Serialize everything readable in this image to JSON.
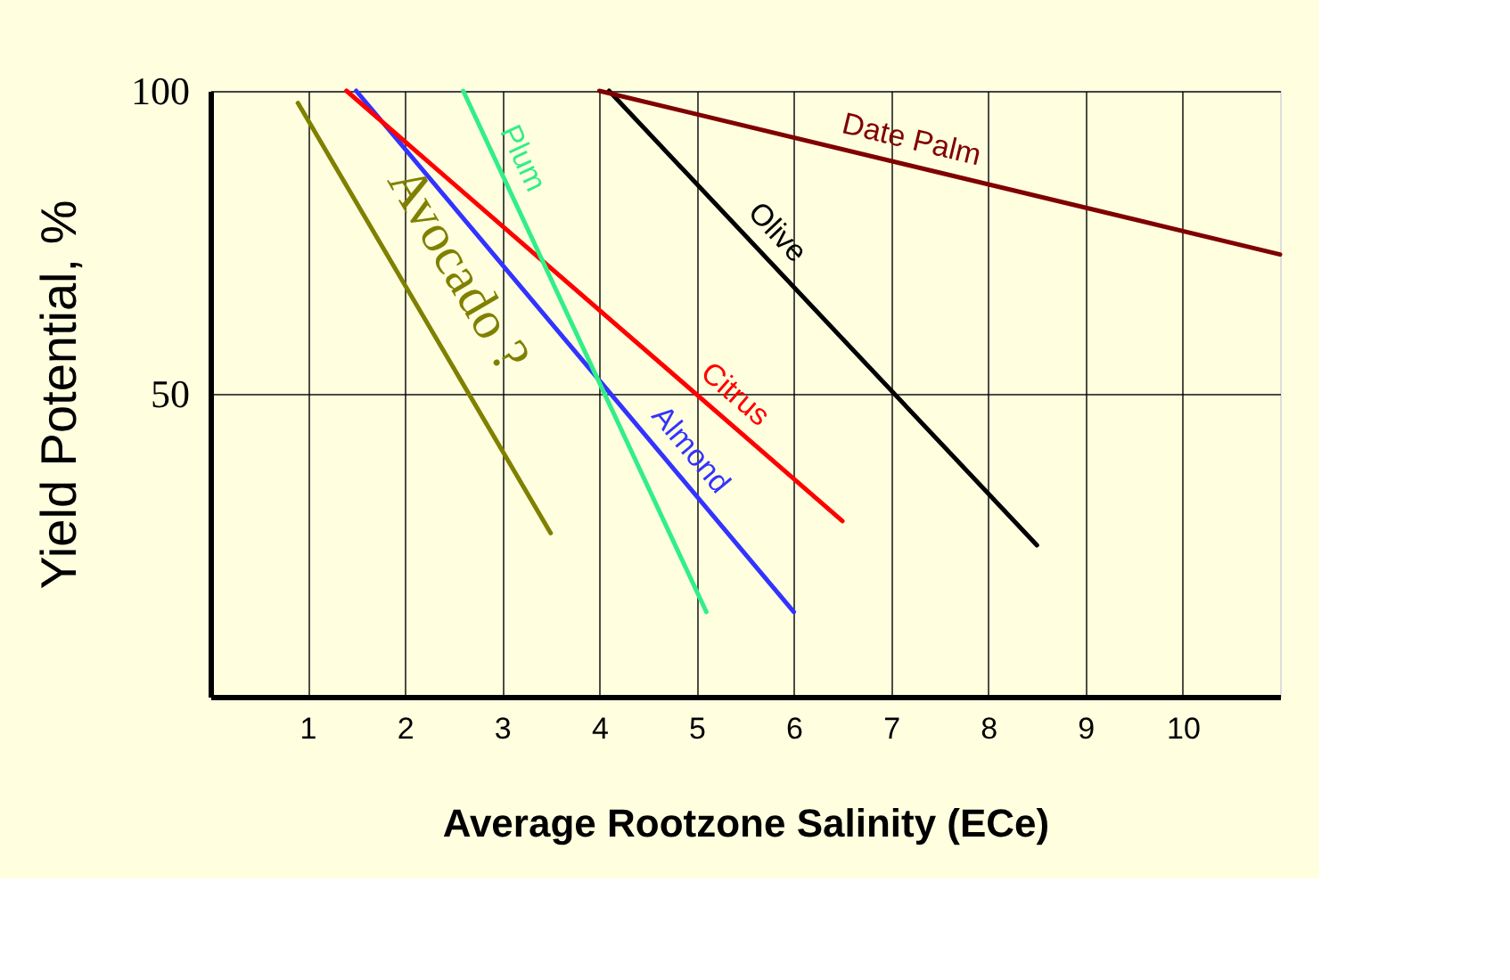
{
  "chart_data": {
    "type": "line",
    "xlabel": "Average Rootzone Salinity (ECe)",
    "ylabel": "Yield Potential, %",
    "xlim": [
      0,
      11
    ],
    "xticks": [
      1,
      2,
      3,
      4,
      5,
      6,
      7,
      8,
      9,
      10
    ],
    "ylim": [
      0,
      100
    ],
    "yticks": [
      50,
      100
    ],
    "grid": true,
    "legend": false,
    "marker": "none",
    "line_style": "solid",
    "series": [
      {
        "name": "Avocado ?",
        "color": "#808000",
        "x": [
          0.9,
          3.5
        ],
        "values": [
          98,
          27
        ]
      },
      {
        "name": "Almond",
        "color": "#3333ff",
        "x": [
          1.5,
          6
        ],
        "values": [
          100,
          14
        ]
      },
      {
        "name": "Citrus",
        "color": "#ff0000",
        "x": [
          1.4,
          6.5
        ],
        "values": [
          100,
          29
        ]
      },
      {
        "name": "Plum",
        "color": "#33ee88",
        "x": [
          2.6,
          5.1
        ],
        "values": [
          100,
          14
        ]
      },
      {
        "name": "Olive",
        "color": "#000000",
        "x": [
          4.1,
          8.5
        ],
        "values": [
          100,
          25
        ]
      },
      {
        "name": "Date Palm",
        "color": "#800000",
        "x": [
          4,
          11
        ],
        "values": [
          100,
          73
        ]
      }
    ]
  }
}
